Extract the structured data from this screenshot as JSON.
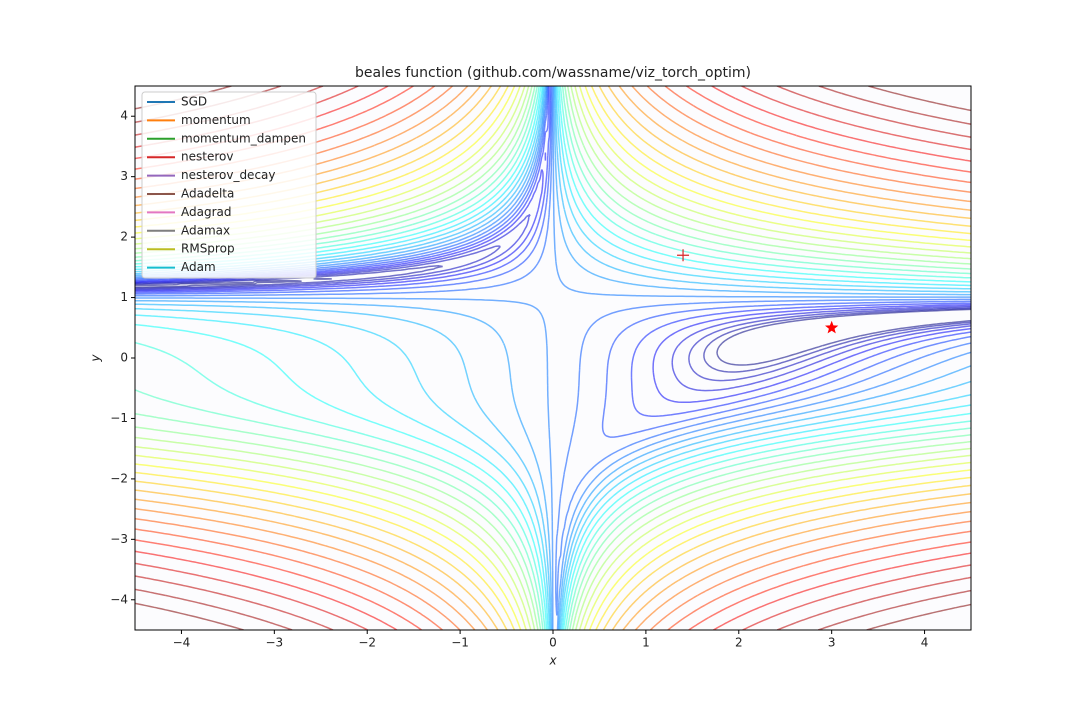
{
  "chart_data": {
    "type": "contour",
    "title": "beales function (github.com/wassname/viz_torch_optim)",
    "x_label": "x",
    "y_label": "y",
    "function": "beale",
    "xlim": [
      -4.5,
      4.5
    ],
    "ylim": [
      -4.5,
      4.5
    ],
    "xticks": [
      {
        "value": -4,
        "label": "−4"
      },
      {
        "value": -3,
        "label": "−3"
      },
      {
        "value": -2,
        "label": "−2"
      },
      {
        "value": -1,
        "label": "−1"
      },
      0,
      1,
      2,
      3,
      4
    ],
    "yticks": [
      {
        "value": -4,
        "label": "−4"
      },
      {
        "value": -3,
        "label": "−3"
      },
      {
        "value": -2,
        "label": "−2"
      },
      {
        "value": -1,
        "label": "−1"
      },
      0,
      1,
      2,
      3,
      4
    ],
    "contour_levels": [
      1,
      1.4,
      1.97,
      2.76,
      3.88,
      5.44,
      7.63,
      10.7,
      15,
      21.1,
      29.6,
      41.5,
      58.2,
      81.7,
      115,
      161,
      225,
      316,
      444,
      623,
      874,
      1230,
      1720,
      2410,
      3390,
      4750,
      6660,
      9350,
      13100,
      18400,
      25800,
      36200,
      50800,
      71300,
      100000
    ],
    "colormap": "jet",
    "legend": "upper left",
    "series": [
      {
        "name": "SGD",
        "color": "#1f77b4"
      },
      {
        "name": "momentum",
        "color": "#ff7f0e"
      },
      {
        "name": "momentum_dampen",
        "color": "#2ca02c"
      },
      {
        "name": "nesterov",
        "color": "#d62728"
      },
      {
        "name": "nesterov_decay",
        "color": "#9467bd"
      },
      {
        "name": "Adadelta",
        "color": "#8c564b"
      },
      {
        "name": "Adagrad",
        "color": "#e377c2"
      },
      {
        "name": "Adamax",
        "color": "#7f7f7f"
      },
      {
        "name": "RMSprop",
        "color": "#bcbd22"
      },
      {
        "name": "Adam",
        "color": "#17becf"
      }
    ],
    "markers": [
      {
        "x": 1.4,
        "y": 1.7,
        "marker": "plus",
        "color": "#d62728"
      },
      {
        "x": 3,
        "y": 0.5,
        "marker": "star",
        "color": "#ff0000"
      }
    ]
  }
}
